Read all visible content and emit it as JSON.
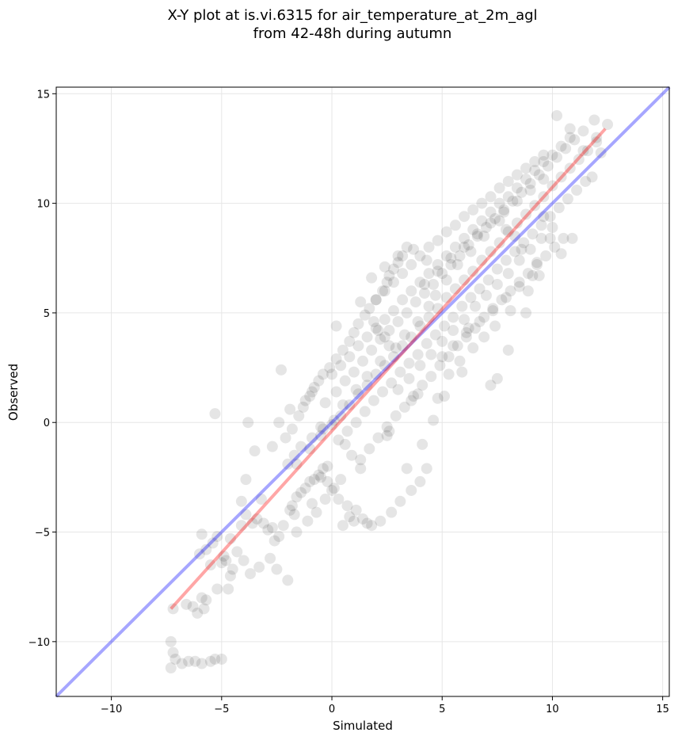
{
  "chart_data": {
    "type": "scatter",
    "title_line1": "X-Y plot at is.vi.6315 for air_temperature_at_2m_agl",
    "title_line2": "from 42-48h during autumn",
    "xlabel": "Simulated",
    "ylabel": "Observed",
    "xlim": [
      -12.5,
      15.3
    ],
    "ylim": [
      -12.5,
      15.3
    ],
    "xticks": [
      -10,
      -5,
      0,
      5,
      10,
      15
    ],
    "yticks": [
      -10,
      -5,
      0,
      5,
      10,
      15
    ],
    "xtick_labels": [
      "−10",
      "−5",
      "0",
      "5",
      "10",
      "15"
    ],
    "ytick_labels": [
      "−10",
      "−5",
      "0",
      "5",
      "10",
      "15"
    ],
    "grid": true,
    "colors": {
      "points": "#000000",
      "identity_line": "#0000ff",
      "fit_line": "#ff0000",
      "grid": "#e6e6e6"
    },
    "identity_line": {
      "x": [
        -12.5,
        15.3
      ],
      "y": [
        -12.5,
        15.3
      ]
    },
    "fit_line": {
      "x": [
        -7.3,
        12.4
      ],
      "y": [
        -8.5,
        13.4
      ]
    },
    "series": [
      {
        "x": [
          -7.3,
          -7.2,
          -7.1,
          -7.3,
          -6.8,
          -6.5,
          -6.2,
          -5.9,
          -5.5,
          -5.3,
          -5.0,
          -7.2,
          -5.8,
          -6.6,
          -6.3,
          -6.1,
          -5.9,
          -5.7,
          -5.2,
          -5.5,
          -5.0,
          -4.7,
          -4.6,
          -4.3,
          -4.1,
          -3.9,
          -3.6,
          -3.4,
          -3.1,
          -2.9,
          -2.6,
          -2.4,
          -2.2,
          -1.9,
          -1.8,
          -1.6,
          -1.4,
          -1.2,
          -1.0,
          -0.8,
          -0.6,
          -0.4,
          -0.2,
          -5.9,
          -5.2,
          -4.8,
          -4.6,
          -4.5,
          -4.9,
          -5.4,
          -5.7,
          -6.0,
          -4.0,
          -3.7,
          -3.3,
          -2.8,
          -2.5,
          -2.0,
          -1.6,
          -1.1,
          -0.7,
          -0.3,
          0.1,
          0.4,
          -5.3,
          -3.8,
          -3.9,
          -2.3,
          -2.7,
          -3.5,
          -2.1,
          -1.8,
          -1.5,
          -1.3,
          -1.0,
          -0.9,
          -0.6,
          -0.4,
          -0.1,
          0.2,
          0.5,
          0.8,
          1.0,
          1.2,
          1.5,
          1.7,
          2.0,
          2.3,
          2.5,
          2.6,
          2.8,
          3.0,
          3.2,
          3.4,
          1.9,
          2.1,
          2.4,
          2.6,
          0.6,
          0.9,
          1.3,
          -0.5,
          -0.2,
          0.0,
          0.3,
          0.7,
          1.1,
          1.4,
          1.8,
          2.2,
          2.7,
          3.1,
          3.6,
          4.0,
          4.3,
          0.5,
          0.8,
          1.0,
          1.6,
          -2.4,
          -1.9,
          -1.2,
          -0.8,
          -1.6,
          -1.0,
          -0.5,
          0.0,
          0.4,
          0.8,
          1.2,
          1.6,
          2.0,
          2.4,
          2.8,
          3.2,
          3.6,
          4.0,
          4.4,
          4.8,
          5.2,
          5.6,
          6.0,
          6.4,
          6.8,
          7.2,
          7.6,
          8.0,
          8.4,
          8.8,
          9.2,
          9.6,
          10.0,
          10.4,
          10.8,
          11.2,
          11.6,
          12.0,
          -0.3,
          0.2,
          0.6,
          1.0,
          1.4,
          1.8,
          2.2,
          2.6,
          3.0,
          3.4,
          3.8,
          4.2,
          4.6,
          5.0,
          5.4,
          5.8,
          6.2,
          6.6,
          7.0,
          7.4,
          7.8,
          8.2,
          8.6,
          9.0,
          9.4,
          9.8,
          10.2,
          10.6,
          11.0,
          11.4,
          0.3,
          0.7,
          1.1,
          1.5,
          1.9,
          2.3,
          2.7,
          3.1,
          3.5,
          3.9,
          4.3,
          4.7,
          5.1,
          5.5,
          5.9,
          6.3,
          6.7,
          7.1,
          7.5,
          7.9,
          8.3,
          8.7,
          9.1,
          9.5,
          9.9,
          10.3,
          10.7,
          11.1,
          11.5,
          0.0,
          0.4,
          0.8,
          1.2,
          1.6,
          2.0,
          2.4,
          2.8,
          3.2,
          3.6,
          4.0,
          4.4,
          4.8,
          5.2,
          5.6,
          6.0,
          6.4,
          6.8,
          7.2,
          7.6,
          8.0,
          8.4,
          8.8,
          9.2,
          9.6,
          10.0,
          10.4,
          10.8,
          1.3,
          1.7,
          2.1,
          2.5,
          2.9,
          3.3,
          3.7,
          4.1,
          4.5,
          4.9,
          5.3,
          5.7,
          6.1,
          6.5,
          6.9,
          7.3,
          7.7,
          8.1,
          8.5,
          8.9,
          9.3,
          9.7,
          10.1,
          10.5,
          2.0,
          2.4,
          2.8,
          3.2,
          3.6,
          4.0,
          4.4,
          4.8,
          5.2,
          5.6,
          6.0,
          6.4,
          6.8,
          7.2,
          7.6,
          8.0,
          8.4,
          8.8,
          9.2,
          9.6,
          3.0,
          3.5,
          4.0,
          4.5,
          5.0,
          5.5,
          6.0,
          6.5,
          7.0,
          7.5,
          8.0,
          8.5,
          9.0,
          9.5,
          10.0,
          4.2,
          4.8,
          5.4,
          6.0,
          6.6,
          7.2,
          7.8,
          8.4,
          9.0,
          9.6,
          5.0,
          5.5,
          6.1,
          6.7,
          7.3,
          7.9,
          8.5,
          9.1,
          11.9,
          12.5,
          12.0,
          11.4,
          10.2,
          10.8,
          11.8,
          12.2,
          9.6,
          9.9,
          10.4,
          10.9,
          7.2,
          8.0,
          8.8,
          9.3,
          7.5,
          5.8,
          4.8,
          6.2,
          3.6,
          3.9,
          5.3,
          2.6,
          -0.9,
          -1.7,
          -2.7,
          -3.2,
          -4.1,
          -0.5,
          0.2,
          1.3,
          1.8,
          2.4,
          3.0,
          3.7,
          4.3,
          2.5,
          3.4,
          4.1,
          4.6,
          5.1,
          5.9,
          6.4,
          6.9,
          7.4,
          8.1,
          8.9,
          9.4,
          8.6,
          8.3,
          7.9,
          7.6,
          6.9,
          6.3,
          5.7,
          5.2,
          4.7,
          4.4,
          3.9,
          3.3,
          2.9,
          2.2,
          1.6,
          1.1,
          0.5,
          0.1,
          -0.4,
          -0.9,
          -1.4,
          -1.7,
          -2.0
        ],
        "y": [
          -10.0,
          -10.5,
          -10.8,
          -11.2,
          -11.0,
          -10.9,
          -10.9,
          -11.0,
          -10.9,
          -10.8,
          -10.8,
          -8.5,
          -8.5,
          -8.3,
          -8.4,
          -8.7,
          -8.0,
          -8.1,
          -7.6,
          -6.5,
          -6.4,
          -7.6,
          -5.3,
          -5.9,
          -4.7,
          -4.2,
          -4.6,
          -4.4,
          -4.6,
          -4.9,
          -5.4,
          -5.2,
          -4.7,
          -4.0,
          -3.8,
          -3.4,
          -3.2,
          -3.0,
          -2.7,
          -2.6,
          -2.4,
          -2.1,
          -2.0,
          -5.1,
          -5.2,
          -6.3,
          -7.0,
          -6.7,
          -6.1,
          -5.5,
          -5.8,
          -6.0,
          -6.3,
          -6.9,
          -6.6,
          -6.2,
          -6.7,
          -7.2,
          -5.0,
          -4.5,
          -4.1,
          -3.5,
          -3.0,
          -2.6,
          0.4,
          0.0,
          -2.6,
          2.4,
          -1.1,
          -1.3,
          -0.7,
          -0.3,
          0.3,
          0.7,
          1.2,
          1.4,
          1.9,
          2.2,
          2.5,
          2.9,
          3.3,
          3.7,
          4.1,
          4.5,
          4.9,
          5.2,
          5.6,
          6.0,
          6.4,
          6.7,
          7.0,
          7.3,
          7.6,
          8.0,
          4.6,
          4.2,
          3.9,
          3.5,
          -1.0,
          -1.5,
          -2.1,
          -2.5,
          -2.7,
          -3.1,
          -3.5,
          -3.8,
          -4.0,
          -4.4,
          -4.7,
          -4.5,
          -4.1,
          -3.6,
          -3.1,
          -2.7,
          -2.1,
          -4.7,
          -4.3,
          -4.5,
          -4.6,
          0.0,
          0.6,
          1.0,
          1.6,
          -1.9,
          -1.2,
          -0.6,
          -0.1,
          0.3,
          0.8,
          1.3,
          1.7,
          2.2,
          2.6,
          3.0,
          3.5,
          3.9,
          4.4,
          4.8,
          5.2,
          5.7,
          6.1,
          6.5,
          6.9,
          7.4,
          7.8,
          8.2,
          8.7,
          9.1,
          9.5,
          9.9,
          10.3,
          10.8,
          11.2,
          11.6,
          12.0,
          12.4,
          12.8,
          0.9,
          1.4,
          1.9,
          2.3,
          2.8,
          3.3,
          3.8,
          4.2,
          4.6,
          5.0,
          5.5,
          5.9,
          6.3,
          6.8,
          7.2,
          7.6,
          8.1,
          8.5,
          8.9,
          9.3,
          9.7,
          10.1,
          10.5,
          10.9,
          11.3,
          11.7,
          12.1,
          12.5,
          12.9,
          13.3,
          -0.8,
          -0.4,
          0.0,
          0.5,
          1.0,
          1.4,
          1.8,
          2.3,
          2.7,
          3.1,
          3.6,
          4.0,
          4.4,
          4.8,
          5.3,
          5.7,
          6.1,
          6.5,
          7.0,
          7.4,
          7.8,
          8.2,
          8.6,
          9.0,
          9.4,
          9.8,
          10.2,
          10.6,
          11.0,
          2.2,
          2.6,
          3.0,
          3.5,
          3.9,
          4.3,
          4.7,
          5.1,
          5.6,
          6.0,
          6.4,
          6.8,
          7.2,
          7.6,
          8.0,
          8.4,
          8.8,
          9.2,
          9.6,
          10.0,
          10.3,
          10.7,
          11.1,
          11.5,
          11.9,
          12.2,
          12.6,
          13.0,
          -1.7,
          -1.2,
          -0.7,
          -0.2,
          0.3,
          0.7,
          1.2,
          1.7,
          2.1,
          2.6,
          3.0,
          3.5,
          3.9,
          4.3,
          4.8,
          5.2,
          5.6,
          6.0,
          6.4,
          6.8,
          7.2,
          7.6,
          8.0,
          8.4,
          5.6,
          6.0,
          6.4,
          6.8,
          7.2,
          7.6,
          8.0,
          8.3,
          8.7,
          9.0,
          9.4,
          9.7,
          10.0,
          10.3,
          10.7,
          11.0,
          11.3,
          11.6,
          11.9,
          12.2,
          1.5,
          2.0,
          2.6,
          3.1,
          3.7,
          4.2,
          4.7,
          5.3,
          5.8,
          6.3,
          6.8,
          7.4,
          7.9,
          8.4,
          8.9,
          6.3,
          6.9,
          7.5,
          8.0,
          8.6,
          9.1,
          9.6,
          10.1,
          10.6,
          11.1,
          3.0,
          3.5,
          4.1,
          4.6,
          5.1,
          5.7,
          6.2,
          6.7,
          13.8,
          13.6,
          13.0,
          12.4,
          14.0,
          13.4,
          11.2,
          12.3,
          9.4,
          8.4,
          7.7,
          8.4,
          1.7,
          3.3,
          5.0,
          7.3,
          2.0,
          2.8,
          1.1,
          4.3,
          1.0,
          1.3,
          2.2,
          -0.4,
          -3.7,
          -4.2,
          -4.8,
          -3.5,
          -3.6,
          -0.2,
          4.4,
          5.5,
          6.6,
          7.1,
          7.6,
          7.9,
          7.4,
          -0.6,
          -2.1,
          -1.0,
          0.1,
          1.2,
          2.3,
          3.4,
          3.9,
          4.4,
          5.1,
          6.0,
          6.7,
          7.9,
          8.5,
          8.8,
          9.2,
          8.5,
          7.8,
          7.2,
          6.5,
          5.8,
          5.3,
          4.6,
          4.0,
          3.4,
          2.8,
          2.1,
          1.5,
          0.8,
          0.1,
          -0.3,
          -0.7,
          -1.1,
          -1.5,
          -1.9
        ]
      }
    ]
  }
}
